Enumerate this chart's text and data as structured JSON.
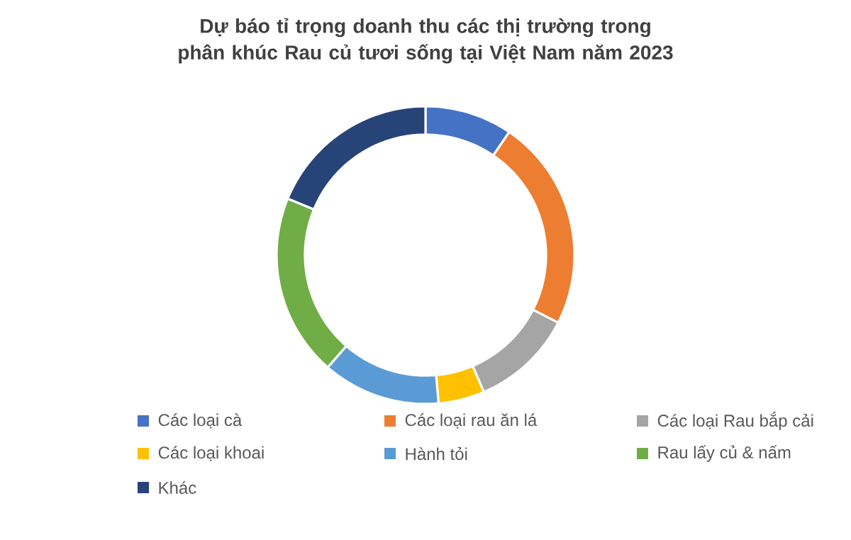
{
  "chart_data": {
    "type": "donut",
    "title": "Dự báo tỉ trọng doanh thu các thị trường trong phân khúc Rau củ tươi sống tại Việt Nam năm 2023",
    "categories": [
      "Các loại cà",
      "Các loại rau ăn lá",
      "Các loại Rau bắp cải",
      "Các loại khoai",
      "Hành tỏi",
      "Rau lấy củ & nấm",
      "Khác"
    ],
    "values": [
      9.5,
      23,
      11.1,
      5,
      12.8,
      19.8,
      18.8
    ],
    "colors": [
      "#4472c4",
      "#ed7d31",
      "#a5a5a5",
      "#ffc000",
      "#5b9bd5",
      "#70ad47",
      "#264478"
    ],
    "legend": "bottom"
  }
}
